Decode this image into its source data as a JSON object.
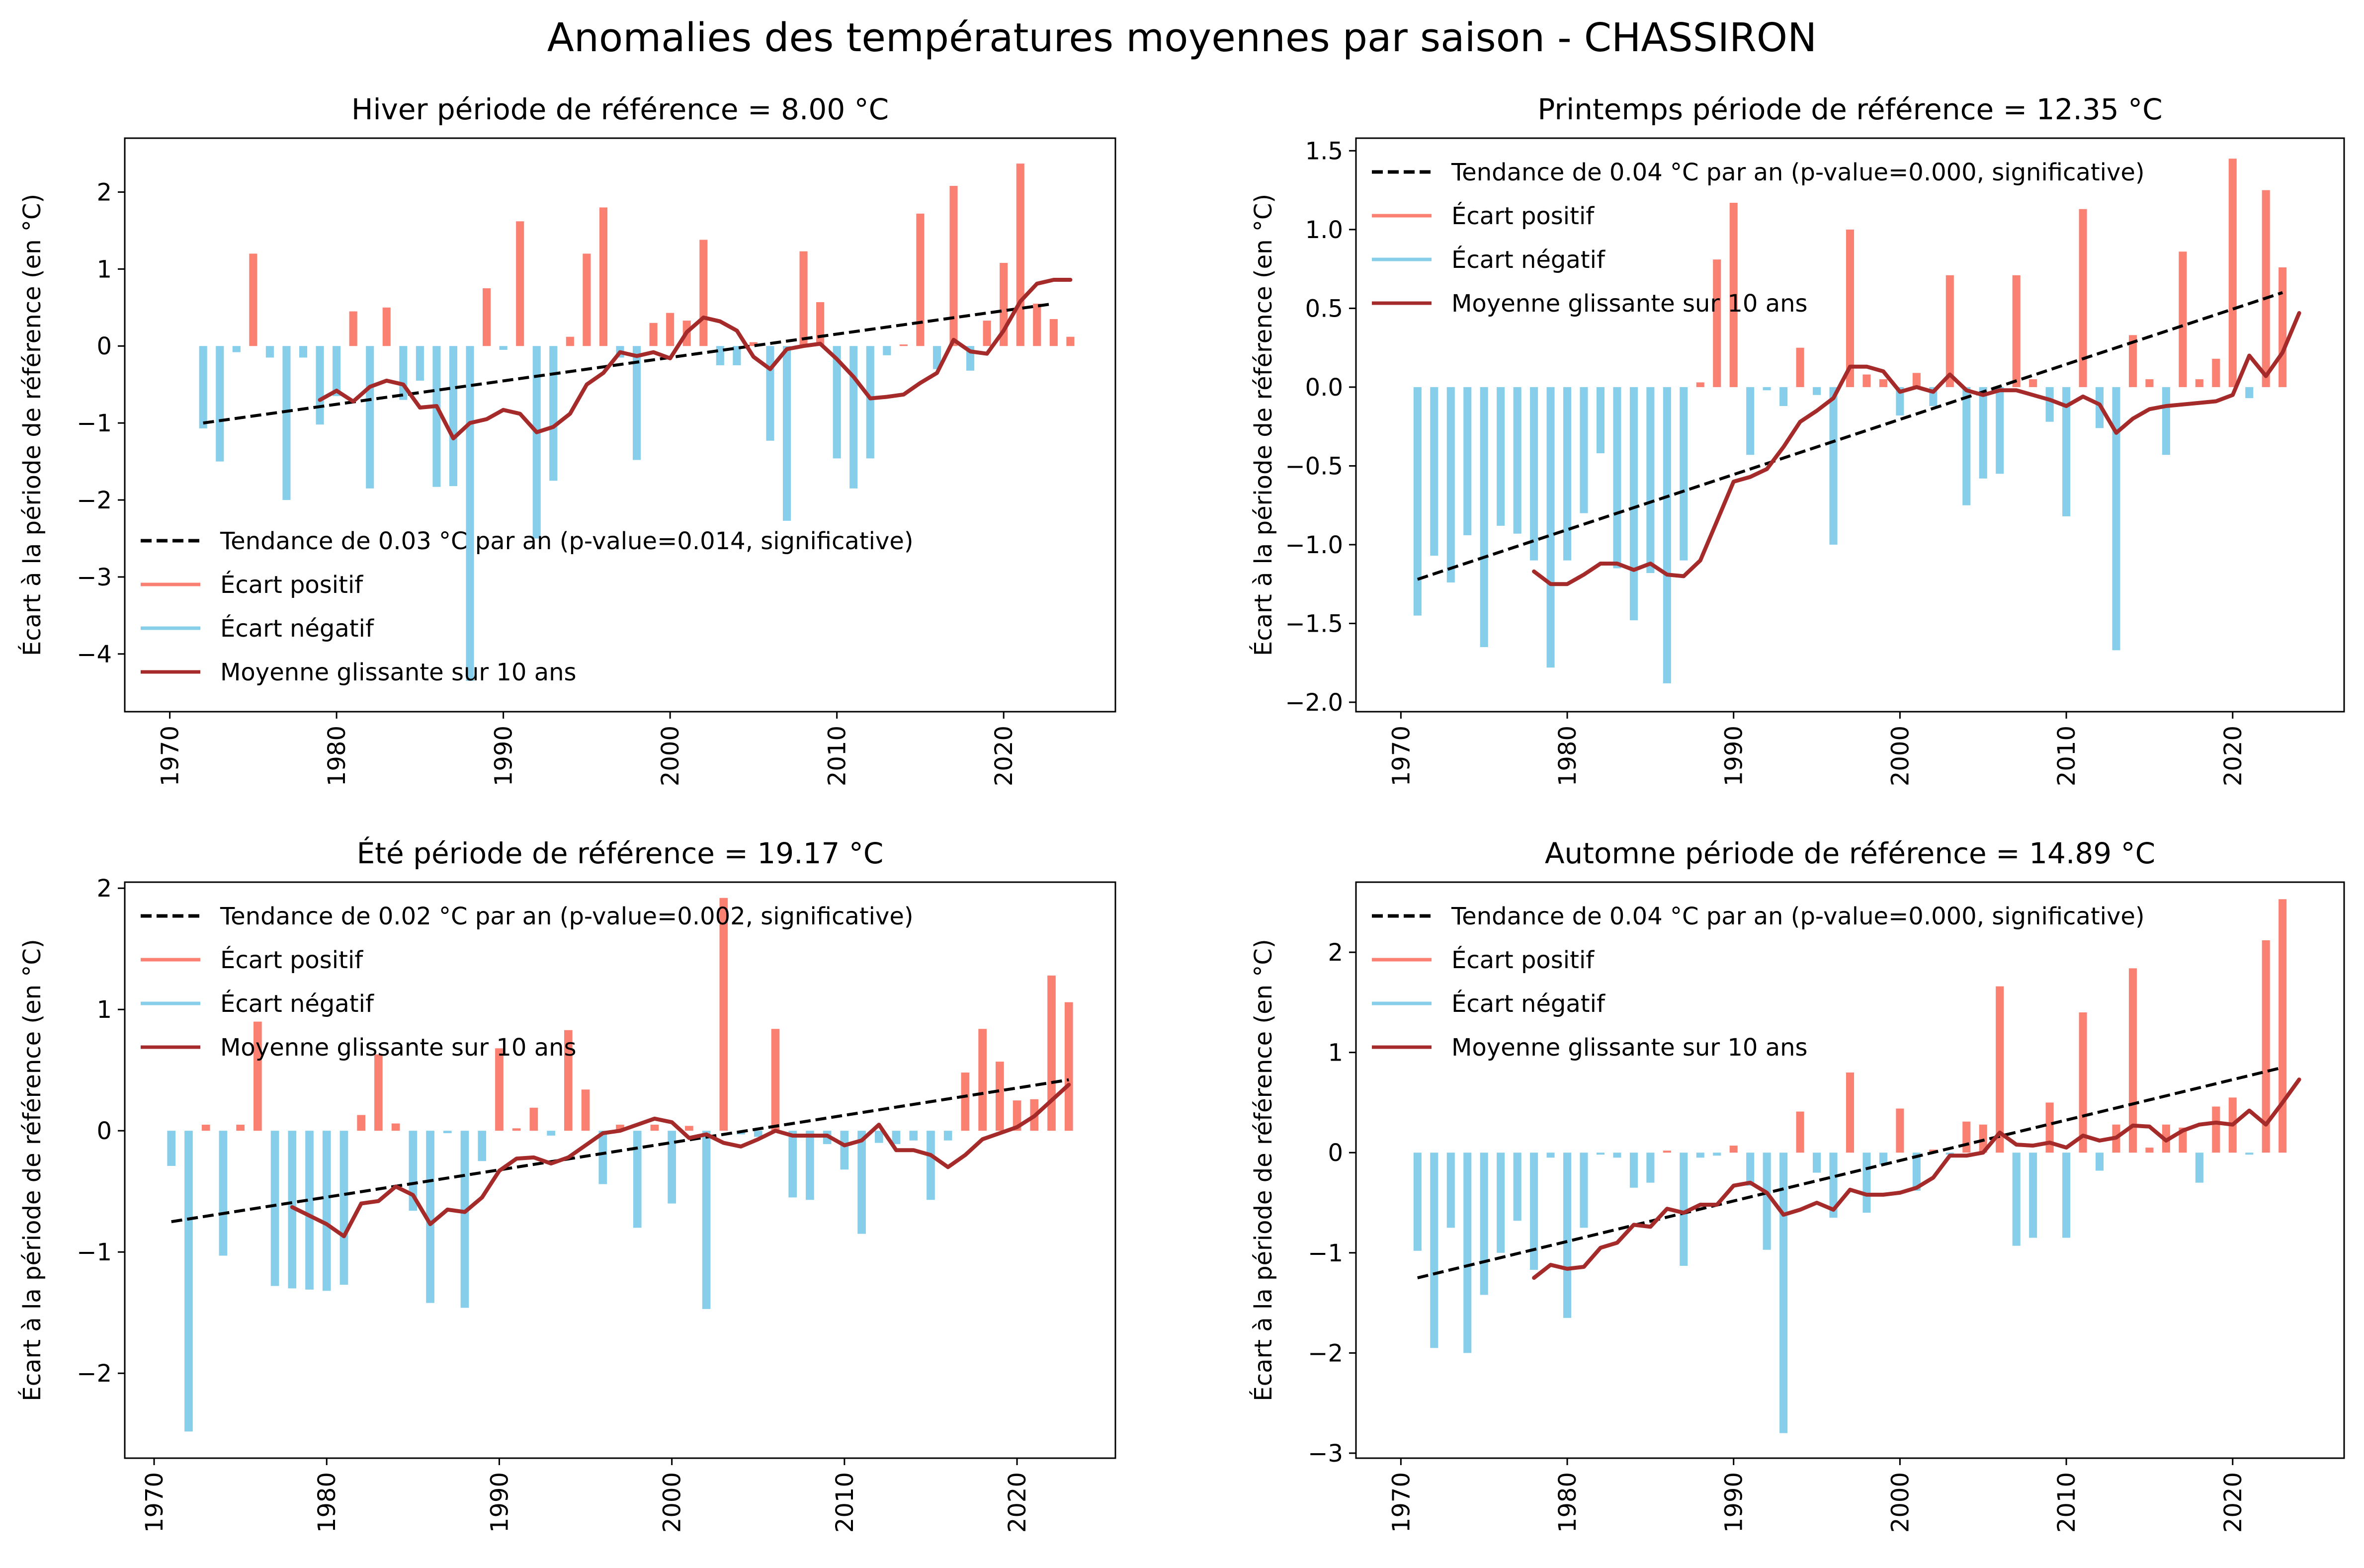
{
  "suptitle": "Anomalies des températures moyennes par saison - CHASSIRON",
  "colors": {
    "positive": "#FA8072",
    "negative": "#87CEEB",
    "rolling": "#A52A2A",
    "trend": "#000000"
  },
  "chart_data": [
    {
      "type": "bar",
      "title": "Hiver période de référence = 8.00 °C",
      "ylabel": "Écart à la période de référence (en °C)",
      "xlabel": "",
      "xlim": [
        1967.3,
        2026.7
      ],
      "ylim": [
        -4.75,
        2.7
      ],
      "xticks": [
        1970,
        1980,
        1990,
        2000,
        2010,
        2020
      ],
      "yticks": [
        -4,
        -3,
        -2,
        -1,
        0,
        1,
        2
      ],
      "legend_position": "lower-left",
      "legend": [
        {
          "label": "Tendance de 0.03 °C par an (p-value=0.014, significative)",
          "kind": "trend"
        },
        {
          "label": "Écart positif",
          "kind": "positive"
        },
        {
          "label": "Écart négatif",
          "kind": "negative"
        },
        {
          "label": "Moyenne glissante sur 10 ans",
          "kind": "rolling"
        }
      ],
      "years_start": 1972,
      "anomalies": [
        -1.07,
        -1.5,
        -0.08,
        1.2,
        -0.15,
        -2.0,
        -0.15,
        -1.02,
        -0.65,
        0.45,
        -1.85,
        0.5,
        -0.7,
        -0.45,
        -1.83,
        -1.82,
        -4.35,
        0.75,
        -0.05,
        1.62,
        -2.5,
        -1.75,
        0.12,
        1.2,
        1.8,
        -0.15,
        -1.48,
        0.3,
        0.43,
        0.33,
        1.38,
        -0.25,
        -0.25,
        0.05,
        -1.23,
        -2.27,
        1.23,
        0.57,
        -1.46,
        -1.85,
        -1.46,
        -0.12,
        0.02,
        1.72,
        -0.3,
        2.08,
        -0.32,
        0.33,
        1.08,
        2.37,
        0.55,
        0.35,
        0.12
      ],
      "rolling_start": 1979,
      "rolling": [
        -0.7,
        -0.58,
        -0.72,
        -0.53,
        -0.45,
        -0.5,
        -0.8,
        -0.78,
        -1.2,
        -1.0,
        -0.95,
        -0.83,
        -0.88,
        -1.12,
        -1.05,
        -0.88,
        -0.5,
        -0.35,
        -0.08,
        -0.13,
        -0.08,
        -0.16,
        0.18,
        0.37,
        0.32,
        0.2,
        -0.14,
        -0.3,
        -0.04,
        0.0,
        0.03,
        -0.17,
        -0.4,
        -0.68,
        -0.66,
        -0.63,
        -0.48,
        -0.35,
        0.08,
        -0.07,
        -0.1,
        0.2,
        0.58,
        0.81,
        0.86,
        0.86
      ],
      "trend": {
        "x": [
          1972,
          2023
        ],
        "y": [
          -1.0,
          0.55
        ]
      }
    },
    {
      "type": "bar",
      "title": "Printemps période de référence = 12.35 °C",
      "ylabel": "Écart à la période de référence (en °C)",
      "xlabel": "",
      "xlim": [
        1967.3,
        2026.7
      ],
      "ylim": [
        -2.06,
        1.58
      ],
      "xticks": [
        1970,
        1980,
        1990,
        2000,
        2010,
        2020
      ],
      "yticks": [
        -2.0,
        -1.5,
        -1.0,
        -0.5,
        0.0,
        0.5,
        1.0,
        1.5
      ],
      "ytick_labels": [
        "−2.0",
        "−1.5",
        "−1.0",
        "−0.5",
        "0.0",
        "0.5",
        "1.0",
        "1.5"
      ],
      "legend_position": "upper-left",
      "legend": [
        {
          "label": "Tendance de 0.04 °C par an (p-value=0.000, significative)",
          "kind": "trend"
        },
        {
          "label": "Écart positif",
          "kind": "positive"
        },
        {
          "label": "Écart négatif",
          "kind": "negative"
        },
        {
          "label": "Moyenne glissante sur 10 ans",
          "kind": "rolling"
        }
      ],
      "years_start": 1971,
      "anomalies": [
        -1.45,
        -1.07,
        -1.24,
        -0.94,
        -1.65,
        -0.88,
        -0.93,
        -1.1,
        -1.78,
        -1.1,
        -0.8,
        -0.42,
        -1.15,
        -1.48,
        -1.18,
        -1.88,
        -1.1,
        0.03,
        0.81,
        1.17,
        -0.43,
        -0.02,
        -0.12,
        0.25,
        -0.05,
        -1.0,
        1.0,
        0.08,
        0.05,
        -0.18,
        0.09,
        -0.12,
        0.71,
        -0.75,
        -0.58,
        -0.55,
        0.71,
        0.05,
        -0.22,
        -0.82,
        1.13,
        -0.26,
        -1.67,
        0.33,
        0.05,
        -0.43,
        0.86,
        0.05,
        0.18,
        1.45,
        -0.07,
        1.25,
        0.76
      ],
      "rolling_start": 1978,
      "rolling": [
        -1.17,
        -1.25,
        -1.25,
        -1.19,
        -1.12,
        -1.12,
        -1.16,
        -1.12,
        -1.19,
        -1.2,
        -1.1,
        -0.85,
        -0.6,
        -0.57,
        -0.52,
        -0.38,
        -0.22,
        -0.15,
        -0.07,
        0.13,
        0.13,
        0.1,
        -0.03,
        0.0,
        -0.03,
        0.08,
        -0.02,
        -0.05,
        -0.02,
        -0.02,
        -0.05,
        -0.08,
        -0.12,
        -0.06,
        -0.11,
        -0.29,
        -0.2,
        -0.14,
        -0.12,
        -0.11,
        -0.1,
        -0.09,
        -0.05,
        0.2,
        0.07,
        0.22,
        0.47
      ],
      "trend": {
        "x": [
          1971,
          2023
        ],
        "y": [
          -1.22,
          0.6
        ]
      }
    },
    {
      "type": "bar",
      "title": "Été période de référence = 19.17 °C",
      "ylabel": "Écart à la période de référence (en °C)",
      "xlabel": "",
      "xlim": [
        1968.3,
        2025.7
      ],
      "ylim": [
        -2.7,
        2.05
      ],
      "xticks": [
        1970,
        1980,
        1990,
        2000,
        2010,
        2020
      ],
      "yticks": [
        -2,
        -1,
        0,
        1,
        2
      ],
      "ytick_labels": [
        "−2",
        "−1",
        "0",
        "1",
        "2"
      ],
      "legend_position": "upper-left",
      "legend": [
        {
          "label": "Tendance de 0.02 °C par an (p-value=0.002, significative)",
          "kind": "trend"
        },
        {
          "label": "Écart positif",
          "kind": "positive"
        },
        {
          "label": "Écart négatif",
          "kind": "negative"
        },
        {
          "label": "Moyenne glissante sur 10 ans",
          "kind": "rolling"
        }
      ],
      "years_start": 1971,
      "anomalies": [
        -0.29,
        -2.48,
        0.05,
        -1.03,
        0.05,
        0.9,
        -1.28,
        -1.3,
        -1.31,
        -1.32,
        -1.27,
        0.13,
        0.63,
        0.06,
        -0.66,
        -1.42,
        -0.02,
        -1.46,
        -0.25,
        0.68,
        0.02,
        0.19,
        -0.04,
        0.83,
        0.34,
        -0.44,
        0.05,
        -0.8,
        0.05,
        -0.6,
        0.04,
        -1.47,
        1.92,
        -0.03,
        -0.05,
        0.84,
        -0.55,
        -0.57,
        -0.11,
        -0.32,
        -0.85,
        -0.1,
        -0.11,
        -0.08,
        -0.57,
        -0.08,
        0.48,
        0.84,
        0.57,
        0.25,
        0.26,
        1.28,
        1.06
      ],
      "rolling_start": 1978,
      "rolling": [
        -0.63,
        -0.7,
        -0.77,
        -0.87,
        -0.6,
        -0.58,
        -0.46,
        -0.53,
        -0.77,
        -0.65,
        -0.67,
        -0.55,
        -0.33,
        -0.23,
        -0.22,
        -0.27,
        -0.22,
        -0.12,
        -0.02,
        0.0,
        0.05,
        0.1,
        0.07,
        -0.06,
        -0.03,
        -0.1,
        -0.13,
        -0.07,
        0.0,
        -0.04,
        -0.04,
        -0.04,
        -0.12,
        -0.08,
        0.05,
        -0.16,
        -0.16,
        -0.2,
        -0.3,
        -0.2,
        -0.07,
        -0.02,
        0.03,
        0.12,
        0.25,
        0.38
      ],
      "trend": {
        "x": [
          1971,
          2023
        ],
        "y": [
          -0.75,
          0.42
        ]
      }
    },
    {
      "type": "bar",
      "title": "Automne période de référence = 14.89 °C",
      "ylabel": "Écart à la période de référence (en °C)",
      "xlabel": "",
      "xlim": [
        1967.3,
        2026.7
      ],
      "ylim": [
        -3.05,
        2.7
      ],
      "xticks": [
        1970,
        1980,
        1990,
        2000,
        2010,
        2020
      ],
      "yticks": [
        -3,
        -2,
        -1,
        0,
        1,
        2
      ],
      "ytick_labels": [
        "−3",
        "−2",
        "−1",
        "0",
        "1",
        "2"
      ],
      "legend_position": "upper-left",
      "legend": [
        {
          "label": "Tendance de 0.04 °C par an (p-value=0.000, significative)",
          "kind": "trend"
        },
        {
          "label": "Écart positif",
          "kind": "positive"
        },
        {
          "label": "Écart négatif",
          "kind": "negative"
        },
        {
          "label": "Moyenne glissante sur 10 ans",
          "kind": "rolling"
        }
      ],
      "years_start": 1971,
      "anomalies": [
        -0.98,
        -1.95,
        -0.75,
        -2.0,
        -1.42,
        -1.0,
        -0.68,
        -1.17,
        -0.05,
        -1.65,
        -0.75,
        -0.02,
        -0.05,
        -0.35,
        -0.3,
        0.02,
        -1.13,
        -0.05,
        -0.03,
        0.07,
        -0.33,
        -0.97,
        -2.8,
        0.41,
        -0.2,
        -0.65,
        0.8,
        -0.6,
        -0.12,
        0.44,
        -0.38,
        0.03,
        -0.02,
        0.31,
        0.28,
        1.66,
        -0.93,
        -0.85,
        0.5,
        -0.85,
        1.4,
        -0.18,
        0.28,
        1.84,
        0.05,
        0.28,
        0.25,
        -0.3,
        0.46,
        0.55,
        -0.02,
        2.12,
        2.53
      ],
      "rolling_start": 1978,
      "rolling": [
        -1.25,
        -1.12,
        -1.16,
        -1.14,
        -0.95,
        -0.9,
        -0.72,
        -0.74,
        -0.56,
        -0.6,
        -0.52,
        -0.52,
        -0.33,
        -0.3,
        -0.4,
        -0.62,
        -0.57,
        -0.5,
        -0.57,
        -0.37,
        -0.42,
        -0.42,
        -0.4,
        -0.35,
        -0.25,
        -0.03,
        -0.03,
        0.0,
        0.2,
        0.08,
        0.07,
        0.1,
        0.05,
        0.17,
        0.12,
        0.15,
        0.27,
        0.26,
        0.12,
        0.22,
        0.28,
        0.3,
        0.28,
        0.42,
        0.28,
        0.5,
        0.73
      ],
      "trend": {
        "x": [
          1971,
          2023
        ],
        "y": [
          -1.25,
          0.85
        ]
      }
    }
  ]
}
